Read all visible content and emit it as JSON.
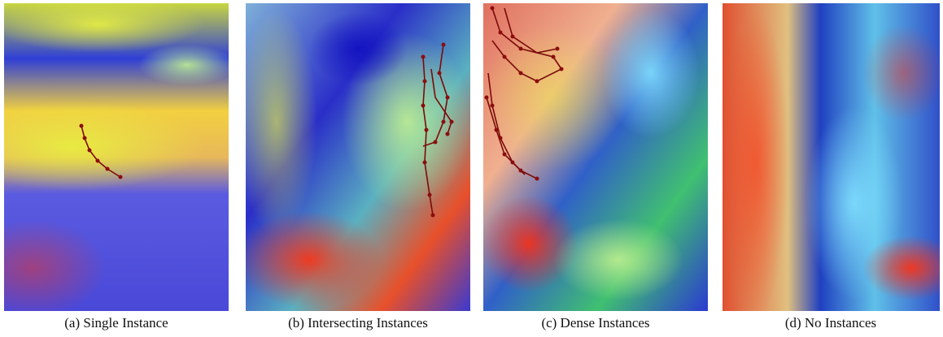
{
  "figure": {
    "panels": [
      {
        "caption": "(a) Single Instance"
      },
      {
        "caption": "(b) Intersecting Instances"
      },
      {
        "caption": "(c) Dense Instances"
      },
      {
        "caption": "(d) No Instances"
      }
    ]
  }
}
